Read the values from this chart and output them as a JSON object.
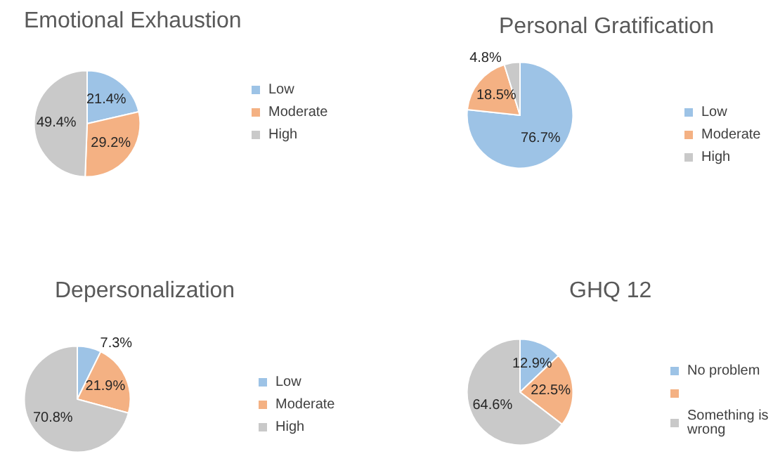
{
  "chart_data": [
    {
      "type": "pie",
      "title": "Emotional Exhaustion",
      "categories": [
        "Low",
        "Moderate",
        "High"
      ],
      "values": [
        21.4,
        29.2,
        49.4
      ],
      "value_labels": [
        "21.4%",
        "29.2%",
        "49.4%"
      ],
      "colors": [
        "#9dc3e6",
        "#f4b183",
        "#c9c9c9"
      ],
      "legend": "right"
    },
    {
      "type": "pie",
      "title": "Personal Gratification",
      "categories": [
        "Low",
        "Moderate",
        "High"
      ],
      "values": [
        76.7,
        18.5,
        4.8
      ],
      "value_labels": [
        "76.7%",
        "18.5%",
        "4.8%"
      ],
      "colors": [
        "#9dc3e6",
        "#f4b183",
        "#c9c9c9"
      ],
      "legend": "right"
    },
    {
      "type": "pie",
      "title": "Depersonalization",
      "categories": [
        "Low",
        "Moderate",
        "High"
      ],
      "values": [
        7.3,
        21.9,
        70.8
      ],
      "value_labels": [
        "7.3%",
        "21.9%",
        "70.8%"
      ],
      "colors": [
        "#9dc3e6",
        "#f4b183",
        "#c9c9c9"
      ],
      "legend": "right"
    },
    {
      "type": "pie",
      "title": "GHQ 12",
      "categories": [
        "No problem",
        null,
        "Something is wrong"
      ],
      "values": [
        12.9,
        22.5,
        64.6
      ],
      "value_labels": [
        "12.9%",
        "22.5%",
        "64.6%"
      ],
      "colors": [
        "#9dc3e6",
        "#f4b183",
        "#c9c9c9"
      ],
      "legend": "right"
    }
  ]
}
